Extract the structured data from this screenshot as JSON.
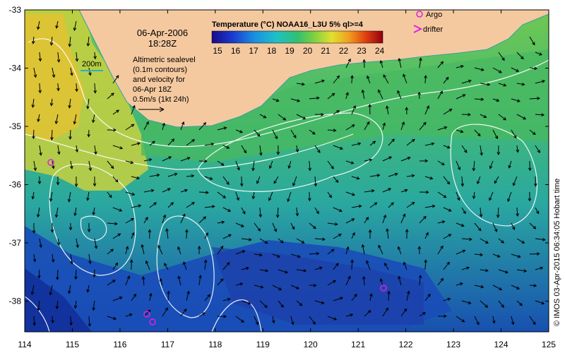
{
  "header": {
    "date": "06-Apr-2006",
    "time": "18:28Z",
    "contour_scale": "200m",
    "sealevel_text": [
      "Altimetric sealevel",
      "(0.1m contours)",
      "and velocity for",
      "06-Apr 18Z",
      "0.5m/s (1kt 24h)"
    ]
  },
  "colorbar": {
    "title": "Temperature (°C) NOAA16_L3U 5% ql>=4",
    "ticks": [
      "15",
      "16",
      "17",
      "18",
      "19",
      "20",
      "21",
      "22",
      "23",
      "24"
    ]
  },
  "legend": {
    "argo_label": "Argo",
    "drifter_label": "drifter",
    "argo_color": "#e020e0",
    "drifter_color": "#e020e0"
  },
  "axes": {
    "x_ticks": [
      "114",
      "115",
      "116",
      "117",
      "118",
      "119",
      "120",
      "121",
      "122",
      "123",
      "124",
      "125"
    ],
    "y_ticks": [
      "-33",
      "-34",
      "-35",
      "-36",
      "-37",
      "-38"
    ]
  },
  "credit": "© IMOS 03-Apr-2015 06:34:05 Hobart time",
  "colors": {
    "land": "#f5c9a0",
    "warm": "#e8d040",
    "mid": "#40c060",
    "cool": "#20a0c0",
    "cold": "#1040c0"
  }
}
